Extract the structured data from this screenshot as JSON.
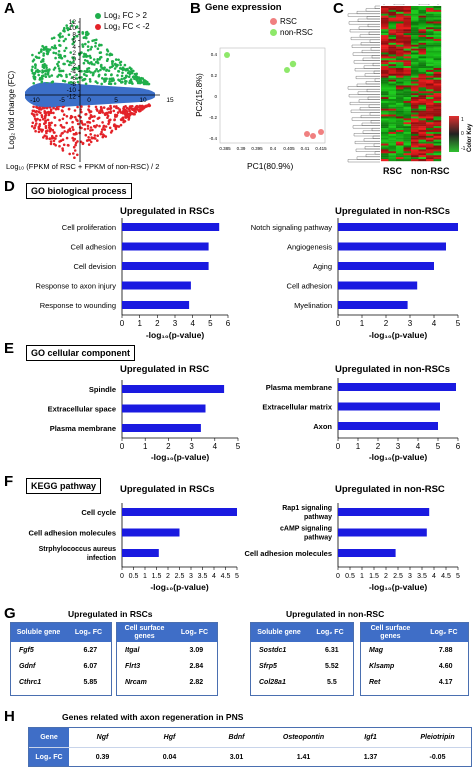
{
  "panels": {
    "A": "A",
    "B": "B",
    "C": "C",
    "D": "D",
    "E": "E",
    "F": "F",
    "G": "G",
    "H": "H"
  },
  "panelA": {
    "legend": [
      {
        "label": "Log₂ FC > 2",
        "color": "#1fae4b"
      },
      {
        "label": "Log₂ FC < -2",
        "color": "#e32228"
      }
    ],
    "ylabel": "Log₂ fold change (FC)",
    "xlabel": "Log₁₀ (FPKM of RSC + FPKM of non-RSC) / 2",
    "yticks": [
      "12",
      "10",
      "8",
      "6",
      "4",
      "2",
      "0",
      "-2",
      "-4",
      "-6",
      "-8",
      "-10",
      "-12"
    ],
    "xticks": [
      "-10",
      "-5",
      "0",
      "5",
      "10",
      "15"
    ],
    "colors": {
      "up": "#1fae4b",
      "down": "#e32228",
      "mid": "#3c6fc8"
    }
  },
  "panelB": {
    "title": "Gene expression",
    "legend": [
      {
        "label": "RSC",
        "color": "#f08080"
      },
      {
        "label": "non-RSC",
        "color": "#8ee86a"
      }
    ],
    "xlabel": "PC1(80.9%)",
    "ylabel": "PC2(15.8%)",
    "yticks": [
      "0.4",
      "0.2",
      "0",
      "-0.2",
      "-0.4"
    ],
    "xticks": [
      "0.385",
      "0.39",
      "0.395",
      "0.4",
      "0.405",
      "0.41",
      "0.415"
    ]
  },
  "panelC": {
    "col_labels": [
      "RSC",
      "non-RSC"
    ],
    "key_label": "Color Key",
    "key_ticks": [
      "1",
      "0",
      "-1"
    ]
  },
  "chart_data": [
    {
      "type": "bar",
      "panel": "D",
      "title": "Upregulated in RSCs",
      "categories": [
        "Cell proliferation",
        "Cell adhesion",
        "Cell devision",
        "Response to axon injury",
        "Response to wounding"
      ],
      "values": [
        5.5,
        4.9,
        4.9,
        3.9,
        3.8
      ],
      "xlim": [
        0,
        6
      ],
      "xticks": [
        "0",
        "1",
        "2",
        "3",
        "4",
        "5",
        "6"
      ],
      "xlabel": "-log₁₀(p-value)"
    },
    {
      "type": "bar",
      "panel": "D",
      "title": "Upregulated in non-RSCs",
      "categories": [
        "Notch signaling pathway",
        "Angiogenesis",
        "Aging",
        "Cell adhesion",
        "Myelination"
      ],
      "values": [
        5.0,
        4.5,
        4.0,
        3.3,
        2.9
      ],
      "xlim": [
        0,
        5
      ],
      "xticks": [
        "0",
        "1",
        "2",
        "3",
        "4",
        "5"
      ],
      "xlabel": "-log₁₀(p-value)"
    },
    {
      "type": "bar",
      "panel": "E",
      "title": "Upregulated in RSC",
      "categories": [
        "Spindle",
        "Extracellular space",
        "Plasma membrane"
      ],
      "values": [
        4.4,
        3.6,
        3.4
      ],
      "xlim": [
        0,
        5
      ],
      "xticks": [
        "0",
        "1",
        "2",
        "3",
        "4",
        "5"
      ],
      "xlabel": "-log₁₀(p-value)"
    },
    {
      "type": "bar",
      "panel": "E",
      "title": "Upregulated in non-RSCs",
      "categories": [
        "Plasma membrane",
        "Extracellular matrix",
        "Axon"
      ],
      "values": [
        5.9,
        5.1,
        5.0
      ],
      "xlim": [
        0,
        6
      ],
      "xticks": [
        "0",
        "1",
        "2",
        "3",
        "4",
        "5",
        "6"
      ],
      "xlabel": "-log₁₀(p-value)"
    },
    {
      "type": "bar",
      "panel": "F",
      "title": "Upregulated in RSCs",
      "categories": [
        "Cell cycle",
        "Cell adhesion molecules",
        "Strphylococcus aureus infection"
      ],
      "values": [
        5.0,
        2.5,
        1.6
      ],
      "xlim": [
        0,
        5
      ],
      "xticks": [
        "0",
        "0.5",
        "1",
        "1.5",
        "2",
        "2.5",
        "3",
        "3.5",
        "4",
        "4.5",
        "5"
      ],
      "xlabel": "-log₁₀(p-value)"
    },
    {
      "type": "bar",
      "panel": "F",
      "title": "Upregulated in non-RSC",
      "categories": [
        "Rap1 signaling pathway",
        "cAMP signaling pathway",
        "Cell adhesion molecules"
      ],
      "values": [
        3.8,
        3.7,
        2.4
      ],
      "xlim": [
        0,
        5
      ],
      "xticks": [
        "0",
        "0.5",
        "1",
        "1.5",
        "2",
        "2.5",
        "3",
        "3.5",
        "4",
        "4.5",
        "5"
      ],
      "xlabel": "-log₁₀(p-value)"
    }
  ],
  "sections": {
    "D": "GO biological process",
    "E": "GO cellular component",
    "F": "KEGG pathway"
  },
  "panelG": {
    "left_title": "Upregulated in RSCs",
    "right_title": "Upregulated in non-RSC",
    "tables": [
      {
        "h1": "Soluble gene",
        "h2": "Log₂ FC",
        "rows": [
          [
            "Fgf5",
            "6.27"
          ],
          [
            "Gdnf",
            "6.07"
          ],
          [
            "Cthrc1",
            "5.85"
          ]
        ]
      },
      {
        "h1": "Cell surface genes",
        "h2": "Log₂ FC",
        "rows": [
          [
            "Itgal",
            "3.09"
          ],
          [
            "Flrt3",
            "2.84"
          ],
          [
            "Nrcam",
            "2.82"
          ]
        ]
      },
      {
        "h1": "Soluble gene",
        "h2": "Log₂ FC",
        "rows": [
          [
            "Sostdc1",
            "6.31"
          ],
          [
            "Sfrp5",
            "5.52"
          ],
          [
            "Col28a1",
            "5.5"
          ]
        ]
      },
      {
        "h1": "Cell surface genes",
        "h2": "Log₂ FC",
        "rows": [
          [
            "Mag",
            "7.88"
          ],
          [
            "Klsamp",
            "4.60"
          ],
          [
            "Ret",
            "4.17"
          ]
        ]
      }
    ]
  },
  "panelH": {
    "title": "Genes related with axon regeneration in PNS",
    "row1_label": "Gene",
    "row2_label": "Log₂ FC",
    "genes": [
      "Ngf",
      "Hgf",
      "Bdnf",
      "Osteopontin",
      "Igf1",
      "Pleiotripin"
    ],
    "values": [
      "0.39",
      "0.04",
      "3.01",
      "1.41",
      "1.37",
      "-0.05"
    ]
  }
}
